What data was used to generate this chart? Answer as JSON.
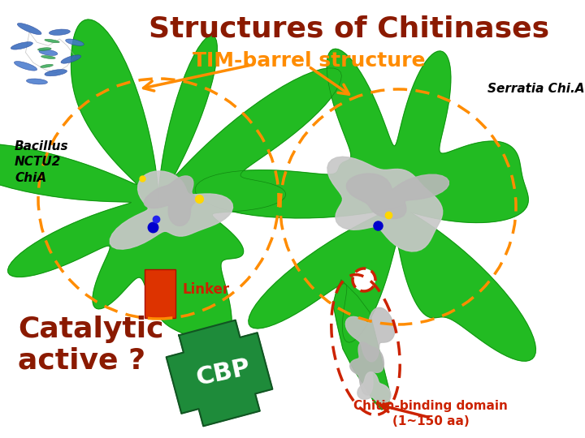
{
  "title": "Structures of Chitinases",
  "title_color": "#8B1A00",
  "title_fontsize": 26,
  "subtitle": "TIM-barrel structure",
  "subtitle_color": "#FF8C00",
  "subtitle_fontsize": 18,
  "background_top": "#8B9EA8",
  "background_main": "#FFFFFF",
  "label_serratia": "Serratia Chi.A",
  "label_serratia_fontsize": 11,
  "label_bacillus": "Bacillus\nNCTU2\nChiA",
  "label_bacillus_fontsize": 11,
  "label_linker": "Linker",
  "label_linker_color": "#CC2200",
  "label_linker_fontsize": 12,
  "label_cbp": "CBP",
  "label_cbp_fontsize": 22,
  "label_cbp_color": "white",
  "label_catalytic": "Catalytic\nactive ?",
  "label_catalytic_color": "#8B1A00",
  "label_catalytic_fontsize": 26,
  "label_chitin_line1": "Chitin-binding domain",
  "label_chitin_line2": "(1~150 aa)",
  "label_chitin_color": "#CC2200",
  "label_chitin_fontsize": 11,
  "orange": "#FF8C00",
  "red": "#CC2200",
  "green_protein": "#22BB22",
  "green_cbp": "#1E8B3A",
  "linker_color": "#DD3300"
}
